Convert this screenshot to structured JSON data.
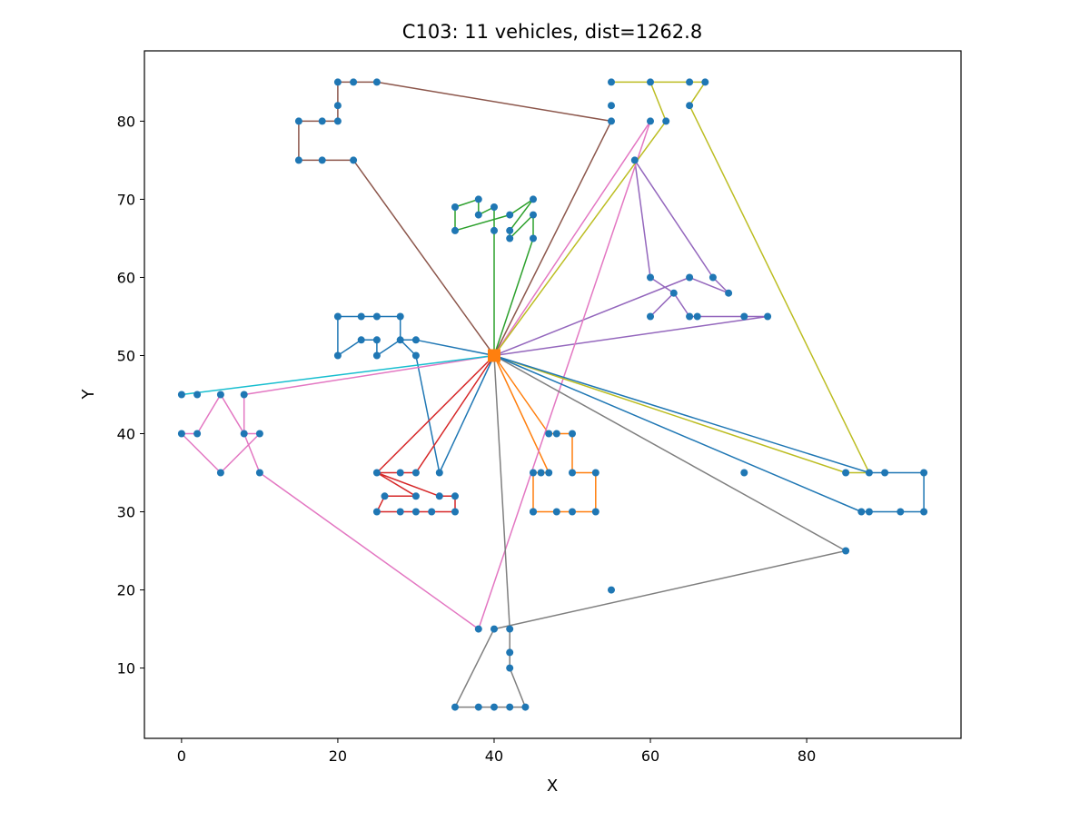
{
  "chart_data": {
    "type": "line",
    "title": "C103: 11 vehicles, dist=1262.8",
    "xlabel": "X",
    "ylabel": "Y",
    "xlim": [
      -4.75,
      99.75
    ],
    "ylim": [
      1,
      89
    ],
    "x_ticks": [
      0,
      20,
      40,
      60,
      80
    ],
    "y_ticks": [
      10,
      20,
      30,
      40,
      50,
      60,
      70,
      80
    ],
    "grid": false,
    "legend": "none",
    "depot": {
      "x": 40,
      "y": 50,
      "color": "#ff7f0e"
    },
    "customer_color": "#1f77b4",
    "customers": [
      [
        45,
        68
      ],
      [
        45,
        70
      ],
      [
        42,
        66
      ],
      [
        42,
        68
      ],
      [
        42,
        65
      ],
      [
        40,
        69
      ],
      [
        40,
        66
      ],
      [
        38,
        68
      ],
      [
        38,
        70
      ],
      [
        35,
        66
      ],
      [
        35,
        69
      ],
      [
        25,
        85
      ],
      [
        22,
        75
      ],
      [
        22,
        85
      ],
      [
        20,
        80
      ],
      [
        20,
        85
      ],
      [
        18,
        75
      ],
      [
        15,
        75
      ],
      [
        15,
        80
      ],
      [
        30,
        50
      ],
      [
        30,
        52
      ],
      [
        28,
        52
      ],
      [
        28,
        55
      ],
      [
        25,
        50
      ],
      [
        25,
        52
      ],
      [
        25,
        55
      ],
      [
        23,
        52
      ],
      [
        23,
        55
      ],
      [
        20,
        50
      ],
      [
        20,
        55
      ],
      [
        10,
        35
      ],
      [
        10,
        40
      ],
      [
        8,
        40
      ],
      [
        8,
        45
      ],
      [
        5,
        35
      ],
      [
        5,
        45
      ],
      [
        2,
        40
      ],
      [
        0,
        40
      ],
      [
        0,
        45
      ],
      [
        35,
        30
      ],
      [
        35,
        32
      ],
      [
        33,
        32
      ],
      [
        33,
        35
      ],
      [
        32,
        30
      ],
      [
        30,
        30
      ],
      [
        30,
        32
      ],
      [
        30,
        35
      ],
      [
        28,
        30
      ],
      [
        28,
        35
      ],
      [
        26,
        32
      ],
      [
        25,
        30
      ],
      [
        25,
        35
      ],
      [
        44,
        5
      ],
      [
        42,
        10
      ],
      [
        42,
        15
      ],
      [
        40,
        5
      ],
      [
        40,
        15
      ],
      [
        38,
        5
      ],
      [
        38,
        15
      ],
      [
        35,
        5
      ],
      [
        95,
        30
      ],
      [
        95,
        35
      ],
      [
        53,
        30
      ],
      [
        92,
        30
      ],
      [
        53,
        35
      ],
      [
        45,
        65
      ],
      [
        90,
        35
      ],
      [
        88,
        30
      ],
      [
        88,
        35
      ],
      [
        87,
        30
      ],
      [
        85,
        25
      ],
      [
        85,
        35
      ],
      [
        75,
        55
      ],
      [
        72,
        55
      ],
      [
        70,
        58
      ],
      [
        68,
        60
      ],
      [
        66,
        55
      ],
      [
        65,
        55
      ],
      [
        65,
        60
      ],
      [
        63,
        58
      ],
      [
        60,
        55
      ],
      [
        60,
        60
      ],
      [
        67,
        85
      ],
      [
        65,
        85
      ],
      [
        65,
        82
      ],
      [
        62,
        80
      ],
      [
        60,
        80
      ],
      [
        60,
        85
      ],
      [
        58,
        75
      ],
      [
        55,
        80
      ],
      [
        55,
        85
      ],
      [
        55,
        82
      ],
      [
        20,
        82
      ],
      [
        18,
        80
      ],
      [
        2,
        45
      ],
      [
        42,
        5
      ],
      [
        42,
        12
      ],
      [
        72,
        35
      ],
      [
        55,
        20
      ],
      [
        45,
        30
      ],
      [
        48,
        30
      ],
      [
        47,
        35
      ],
      [
        48,
        40
      ],
      [
        46,
        35
      ],
      [
        50,
        35
      ],
      [
        50,
        30
      ],
      [
        50,
        40
      ],
      [
        47,
        40
      ],
      [
        45,
        35
      ],
      [
        45,
        30
      ]
    ],
    "series": [
      {
        "color": "#1f77b4",
        "points": [
          [
            40,
            50
          ],
          [
            30,
            52
          ],
          [
            28,
            52
          ],
          [
            28,
            55
          ],
          [
            25,
            55
          ],
          [
            23,
            55
          ],
          [
            20,
            55
          ],
          [
            20,
            50
          ],
          [
            23,
            52
          ],
          [
            25,
            52
          ],
          [
            25,
            50
          ],
          [
            28,
            52
          ],
          [
            30,
            50
          ],
          [
            33,
            35
          ],
          [
            40,
            50
          ]
        ]
      },
      {
        "color": "#ff7f0e",
        "points": [
          [
            40,
            50
          ],
          [
            47,
            40
          ],
          [
            48,
            40
          ],
          [
            50,
            40
          ],
          [
            50,
            35
          ],
          [
            53,
            35
          ],
          [
            53,
            30
          ],
          [
            50,
            30
          ],
          [
            48,
            30
          ],
          [
            45,
            30
          ],
          [
            45,
            35
          ],
          [
            47,
            35
          ],
          [
            40,
            50
          ]
        ]
      },
      {
        "color": "#2ca02c",
        "points": [
          [
            40,
            50
          ],
          [
            40,
            66
          ],
          [
            40,
            69
          ],
          [
            38,
            68
          ],
          [
            38,
            70
          ],
          [
            35,
            69
          ],
          [
            35,
            66
          ],
          [
            42,
            68
          ],
          [
            45,
            70
          ],
          [
            42,
            66
          ],
          [
            42,
            65
          ],
          [
            45,
            68
          ],
          [
            45,
            65
          ],
          [
            40,
            50
          ]
        ]
      },
      {
        "color": "#d62728",
        "points": [
          [
            40,
            50
          ],
          [
            30,
            35
          ],
          [
            28,
            35
          ],
          [
            25,
            35
          ],
          [
            30,
            32
          ],
          [
            26,
            32
          ],
          [
            25,
            30
          ],
          [
            28,
            30
          ],
          [
            30,
            30
          ],
          [
            32,
            30
          ],
          [
            35,
            30
          ],
          [
            35,
            32
          ],
          [
            33,
            32
          ],
          [
            25,
            35
          ],
          [
            40,
            50
          ]
        ]
      },
      {
        "color": "#9467bd",
        "points": [
          [
            40,
            50
          ],
          [
            75,
            55
          ],
          [
            72,
            55
          ],
          [
            66,
            55
          ],
          [
            65,
            55
          ],
          [
            63,
            58
          ],
          [
            60,
            55
          ],
          [
            63,
            58
          ],
          [
            60,
            60
          ],
          [
            58,
            75
          ],
          [
            68,
            60
          ],
          [
            70,
            58
          ],
          [
            65,
            60
          ],
          [
            40,
            50
          ]
        ]
      },
      {
        "color": "#8c564b",
        "points": [
          [
            40,
            50
          ],
          [
            22,
            75
          ],
          [
            18,
            75
          ],
          [
            15,
            75
          ],
          [
            15,
            80
          ],
          [
            20,
            80
          ],
          [
            20,
            85
          ],
          [
            22,
            85
          ],
          [
            25,
            85
          ],
          [
            55,
            80
          ],
          [
            40,
            50
          ]
        ]
      },
      {
        "color": "#e377c2",
        "points": [
          [
            40,
            50
          ],
          [
            60,
            80
          ],
          [
            38,
            15
          ],
          [
            10,
            35
          ],
          [
            8,
            40
          ],
          [
            10,
            40
          ],
          [
            5,
            35
          ],
          [
            0,
            40
          ],
          [
            2,
            40
          ],
          [
            5,
            45
          ],
          [
            8,
            40
          ],
          [
            8,
            45
          ],
          [
            40,
            50
          ]
        ]
      },
      {
        "color": "#7f7f7f",
        "points": [
          [
            40,
            50
          ],
          [
            42,
            15
          ],
          [
            42,
            10
          ],
          [
            44,
            5
          ],
          [
            40,
            5
          ],
          [
            38,
            5
          ],
          [
            35,
            5
          ],
          [
            40,
            15
          ],
          [
            85,
            25
          ],
          [
            40,
            50
          ]
        ]
      },
      {
        "color": "#bcbd22",
        "points": [
          [
            40,
            50
          ],
          [
            62,
            80
          ],
          [
            60,
            85
          ],
          [
            55,
            85
          ],
          [
            60,
            85
          ],
          [
            65,
            85
          ],
          [
            67,
            85
          ],
          [
            65,
            82
          ],
          [
            88,
            35
          ],
          [
            85,
            35
          ],
          [
            40,
            50
          ]
        ]
      },
      {
        "color": "#1f77b4",
        "points": [
          [
            40,
            50
          ],
          [
            88,
            35
          ],
          [
            90,
            35
          ],
          [
            95,
            35
          ],
          [
            95,
            30
          ],
          [
            92,
            30
          ],
          [
            88,
            30
          ],
          [
            87,
            30
          ],
          [
            40,
            50
          ]
        ]
      },
      {
        "color": "#17becf",
        "points": [
          [
            40,
            50
          ],
          [
            0,
            45
          ],
          [
            40,
            50
          ]
        ]
      }
    ]
  }
}
